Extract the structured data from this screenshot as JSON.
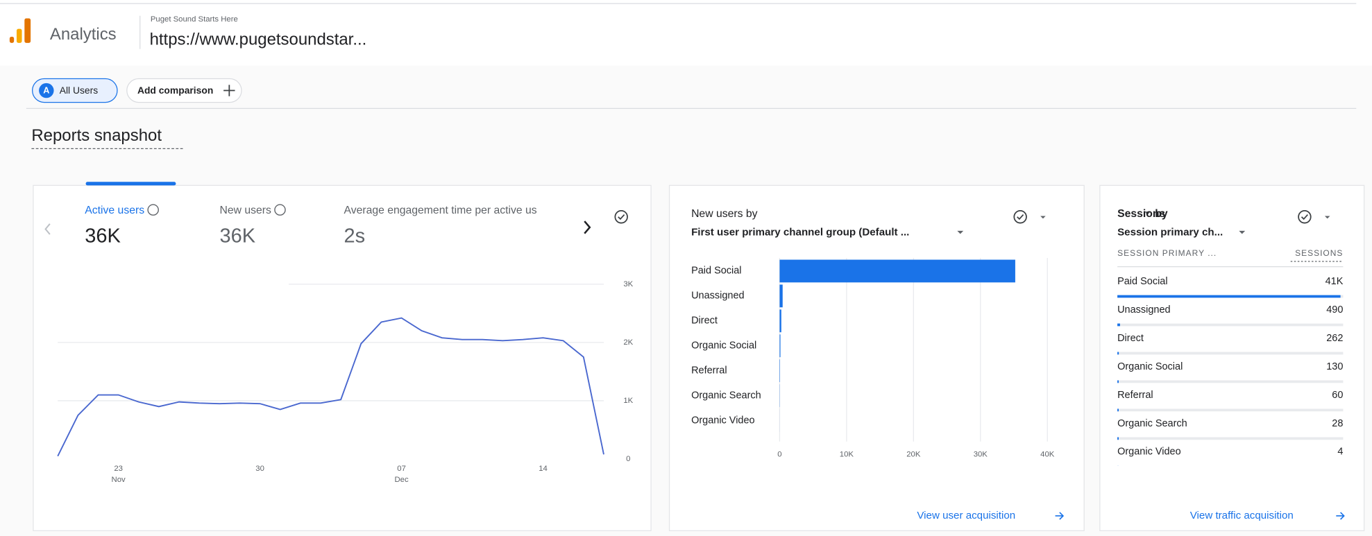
{
  "header": {
    "app": "Analytics",
    "property": "Puget Sound Starts Here",
    "url": "https://www.pugetsoundstar..."
  },
  "toolbar": {
    "segment_badge": "A",
    "segment": "All Users",
    "add": "Add comparison"
  },
  "section_title": "Reports snapshot",
  "metrics": [
    {
      "label": "Active users",
      "value": "36K"
    },
    {
      "label": "New users",
      "value": "36K"
    },
    {
      "label": "Average engagement time per active us",
      "value": "2s"
    }
  ],
  "chart_data": [
    {
      "type": "line",
      "categories": [
        null,
        null,
        null,
        "23 Nov",
        null,
        null,
        null,
        null,
        null,
        null,
        "30",
        null,
        null,
        null,
        null,
        null,
        null,
        "07 Dec",
        null,
        null,
        null,
        null,
        null,
        null,
        "14",
        null,
        null,
        null
      ],
      "values": [
        50,
        750,
        1100,
        1100,
        980,
        900,
        980,
        960,
        950,
        960,
        950,
        850,
        960,
        960,
        1020,
        1980,
        2350,
        2420,
        2200,
        2080,
        2050,
        2050,
        2030,
        2050,
        2080,
        2030,
        1750,
        80
      ],
      "color": "#4967cf",
      "ylim": [
        0,
        3000
      ],
      "yticks": [
        0,
        {
          "value": 1000,
          "label": "1K"
        },
        {
          "value": 2000,
          "label": "2K"
        },
        {
          "value": 3000,
          "label": "3K"
        }
      ],
      "grid": true
    },
    {
      "type": "hbar",
      "title": "New users by",
      "subtitle": "First user primary channel group (Default ...",
      "categories": [
        "Paid Social",
        "Unassigned",
        "Direct",
        "Organic Social",
        "Referral",
        "Organic Search",
        "Organic Video"
      ],
      "values": [
        35200,
        450,
        250,
        120,
        55,
        25,
        4
      ],
      "color": "#1a73e8",
      "xlim": [
        0,
        40000
      ],
      "xticks": [
        0,
        {
          "value": 10000,
          "label": "10K"
        },
        {
          "value": 20000,
          "label": "20K"
        },
        {
          "value": 30000,
          "label": "30K"
        },
        {
          "value": 40000,
          "label": "40K"
        }
      ],
      "grid": true,
      "link": "View user acquisition"
    },
    {
      "type": "table",
      "title": "Sessions",
      "title_joiner": "by",
      "subtitle": "Session primary ch...",
      "columns": [
        "SESSION PRIMARY ...",
        "SESSIONS"
      ],
      "categories": [
        "Paid Social",
        "Unassigned",
        "Direct",
        "Organic Social",
        "Referral",
        "Organic Search",
        "Organic Video"
      ],
      "values": [
        41000,
        490,
        262,
        130,
        60,
        28,
        4
      ],
      "value_labels": [
        "41K",
        "490",
        "262",
        "130",
        "60",
        "28",
        "4"
      ],
      "color": "#1a73e8",
      "link": "View traffic acquisition"
    }
  ]
}
